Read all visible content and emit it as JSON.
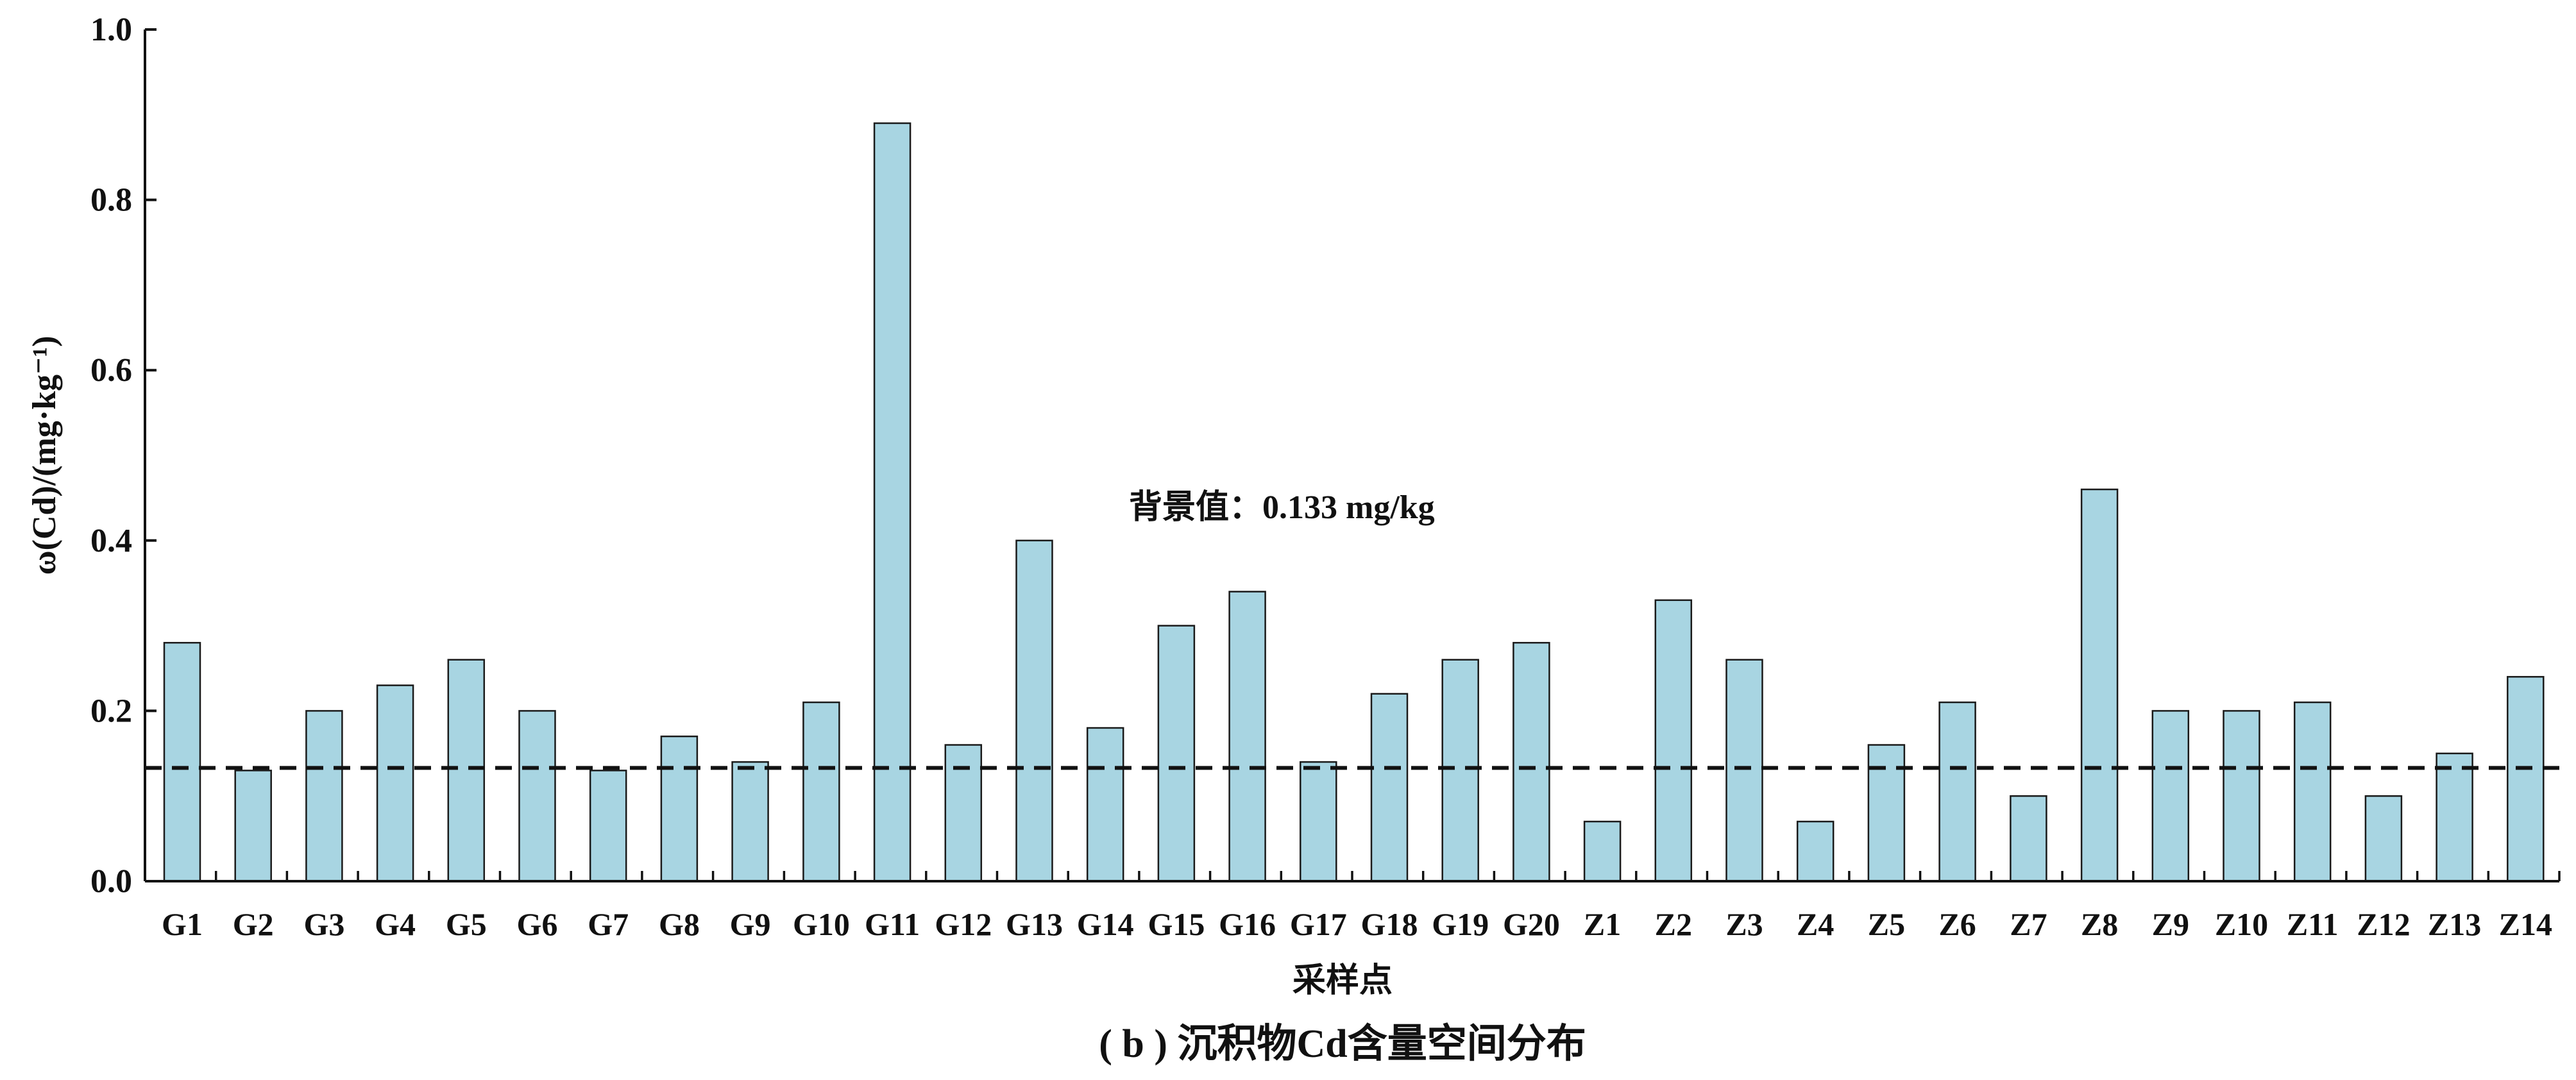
{
  "chart_data": {
    "type": "bar",
    "title": "",
    "caption": "( b ) 沉积物Cd含量空间分布",
    "xlabel": "采样点",
    "ylabel": "ω(Cd)/(mg·kg⁻¹)",
    "ylim": [
      0,
      1.0
    ],
    "yticks": [
      "0.0",
      "0.2",
      "0.4",
      "0.6",
      "0.8",
      "1.0"
    ],
    "categories": [
      "G1",
      "G2",
      "G3",
      "G4",
      "G5",
      "G6",
      "G7",
      "G8",
      "G9",
      "G10",
      "G11",
      "G12",
      "G13",
      "G14",
      "G15",
      "G16",
      "G17",
      "G18",
      "G19",
      "G20",
      "Z1",
      "Z2",
      "Z3",
      "Z4",
      "Z5",
      "Z6",
      "Z7",
      "Z8",
      "Z9",
      "Z10",
      "Z11",
      "Z12",
      "Z13",
      "Z14"
    ],
    "values": [
      0.28,
      0.13,
      0.2,
      0.23,
      0.26,
      0.2,
      0.13,
      0.17,
      0.14,
      0.21,
      0.89,
      0.16,
      0.4,
      0.18,
      0.3,
      0.34,
      0.14,
      0.22,
      0.26,
      0.28,
      0.07,
      0.33,
      0.26,
      0.07,
      0.16,
      0.21,
      0.1,
      0.46,
      0.2,
      0.2,
      0.21,
      0.1,
      0.15,
      0.24
    ],
    "reference_line": {
      "value": 0.133,
      "label": "背景值：0.133 mg/kg",
      "style": "dashed"
    },
    "bar_color": "#a8d5e2",
    "grid": false,
    "legend": "none"
  }
}
